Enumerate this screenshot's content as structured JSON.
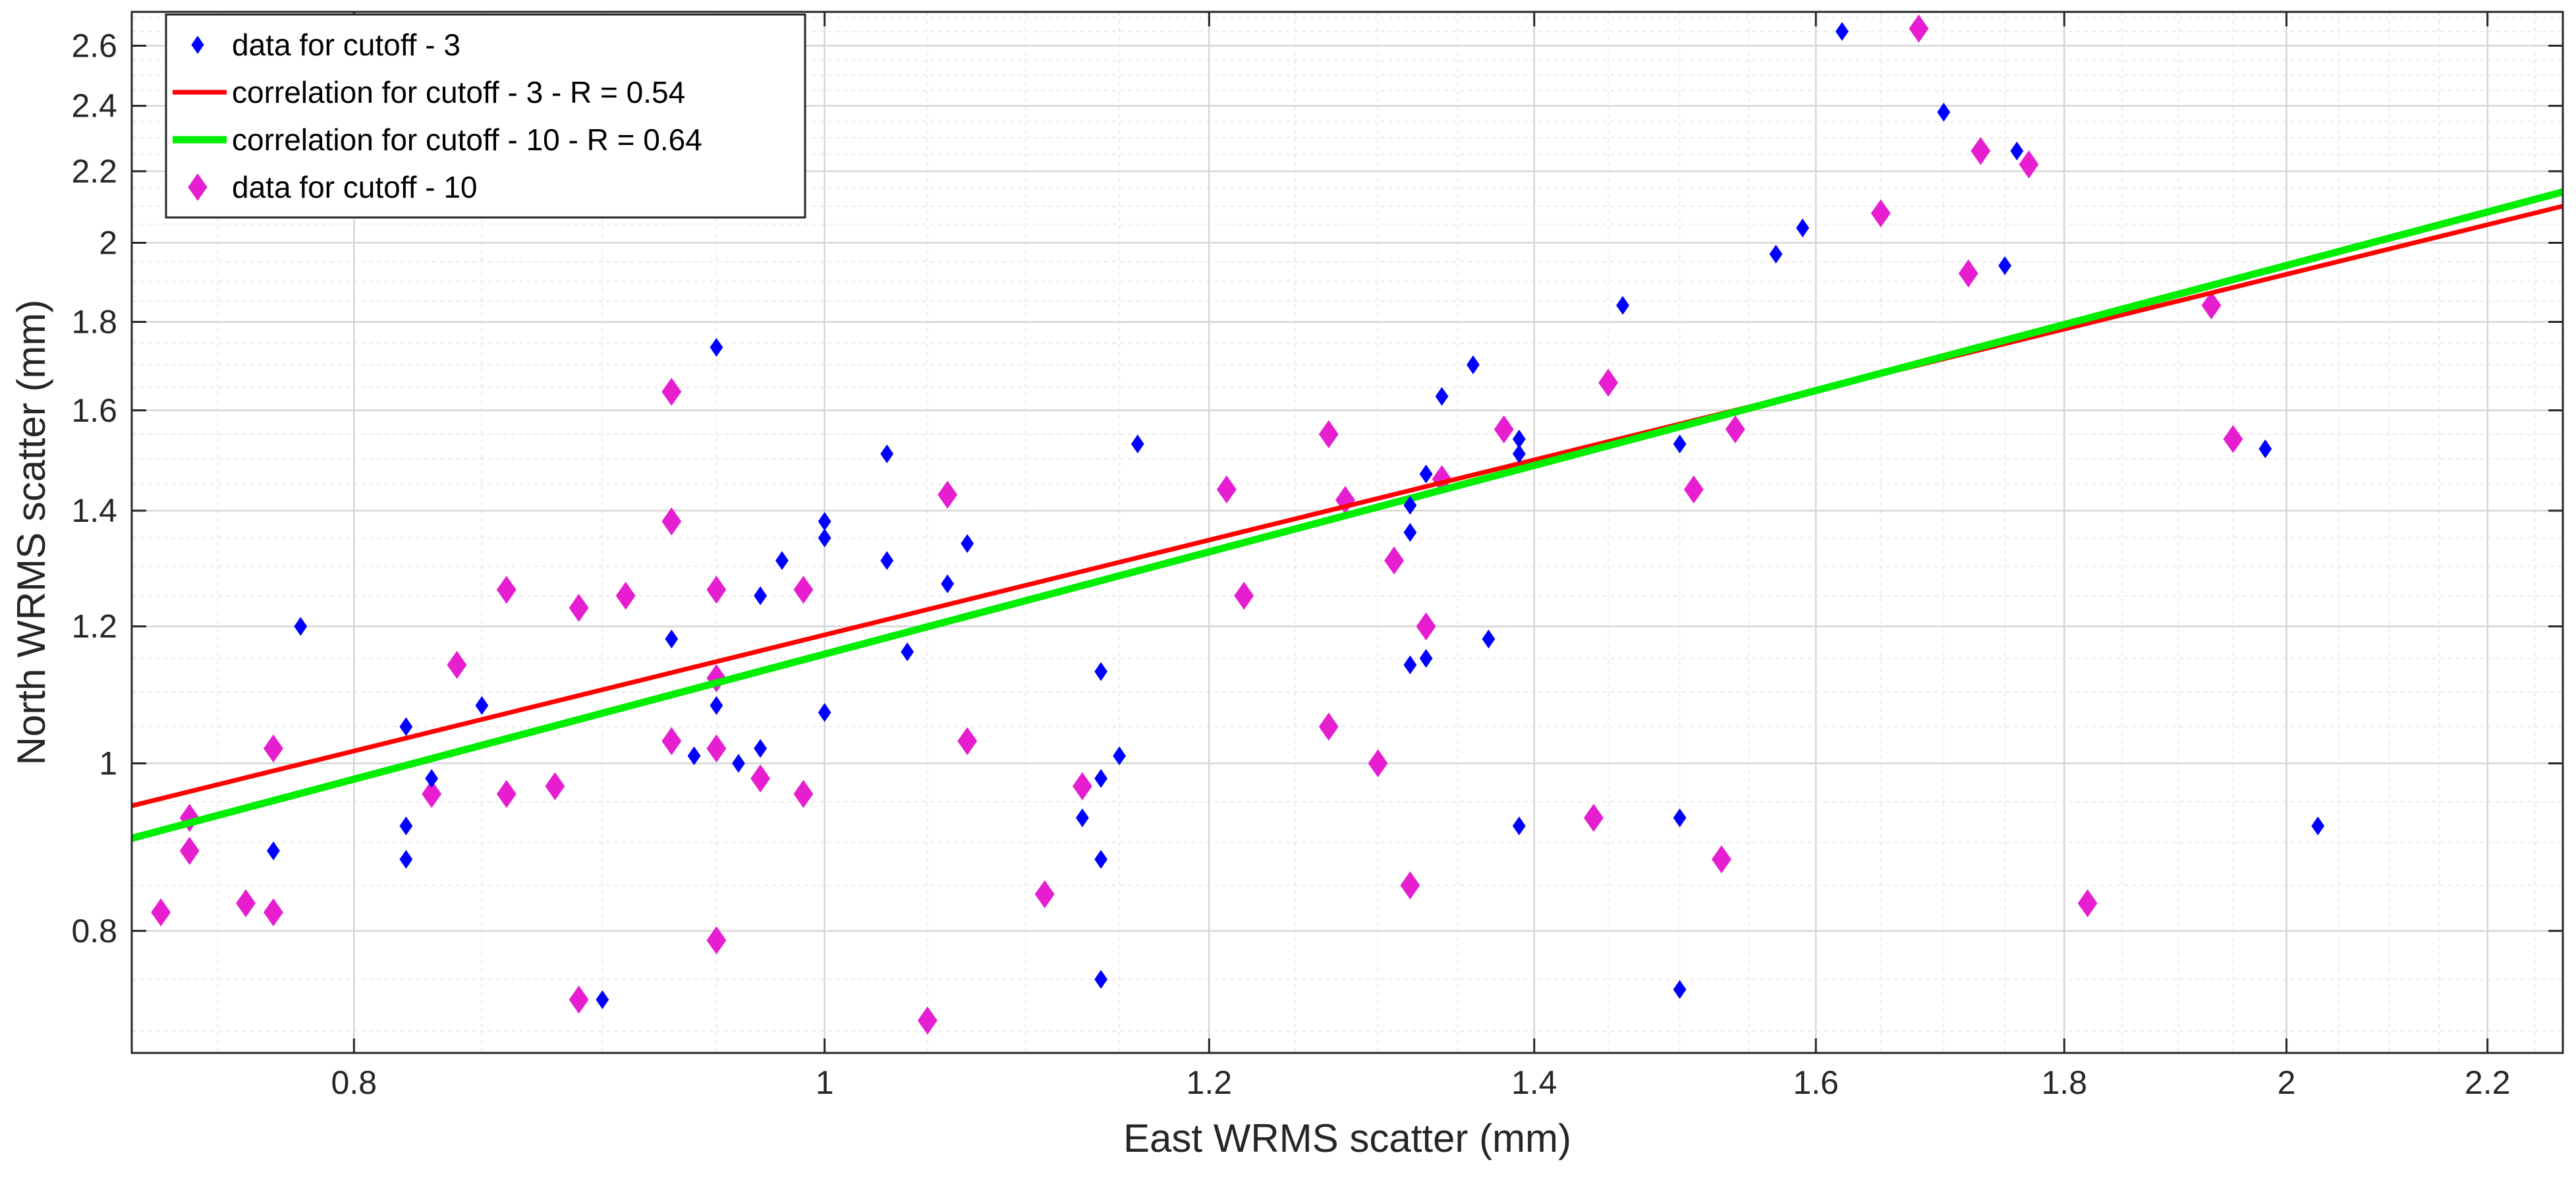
{
  "chart_data": {
    "type": "scatter",
    "xscale": "log",
    "yscale": "log",
    "xlabel": "East WRMS scatter (mm)",
    "ylabel": "North WRMS scatter (mm)",
    "xlim": [
      0.72,
      2.28
    ],
    "ylim": [
      0.68,
      2.72
    ],
    "xticks": [
      0.8,
      1,
      1.2,
      1.4,
      1.6,
      1.8,
      2,
      2.2
    ],
    "xtick_labels": [
      "0.8",
      "1",
      "1.2",
      "1.4",
      "1.6",
      "1.8",
      "2",
      "2.2"
    ],
    "yticks": [
      0.8,
      1,
      1.2,
      1.4,
      1.6,
      1.8,
      2,
      2.2,
      2.4,
      2.6
    ],
    "ytick_labels": [
      "0.8",
      "1",
      "1.2",
      "1.4",
      "1.6",
      "1.8",
      "2",
      "2.2",
      "2.4",
      "2.6"
    ],
    "grid": true,
    "legend_position": "top-left",
    "colors": {
      "cutoff3": "#0000ff",
      "cutoff10": "#e61ecf",
      "fit3": "#ff0000",
      "fit10": "#00ee00"
    },
    "series": [
      {
        "name": "data for cutoff - 3",
        "kind": "points",
        "marker": "small-diamond",
        "color": "#0000ff",
        "points": [
          [
            0.78,
            1.2
          ],
          [
            0.77,
            0.89
          ],
          [
            0.82,
            1.05
          ],
          [
            0.82,
            0.92
          ],
          [
            0.82,
            0.88
          ],
          [
            0.83,
            0.98
          ],
          [
            0.85,
            1.08
          ],
          [
            0.9,
            0.73
          ],
          [
            0.93,
            1.18
          ],
          [
            0.94,
            1.01
          ],
          [
            0.95,
            1.74
          ],
          [
            0.95,
            1.08
          ],
          [
            0.96,
            1.0
          ],
          [
            0.97,
            1.25
          ],
          [
            0.97,
            1.02
          ],
          [
            0.98,
            1.31
          ],
          [
            1.0,
            1.38
          ],
          [
            1.0,
            1.35
          ],
          [
            1.0,
            1.07
          ],
          [
            1.03,
            1.51
          ],
          [
            1.03,
            1.31
          ],
          [
            1.04,
            1.16
          ],
          [
            1.06,
            1.27
          ],
          [
            1.07,
            1.34
          ],
          [
            1.13,
            0.93
          ],
          [
            1.14,
            1.13
          ],
          [
            1.14,
            0.98
          ],
          [
            1.14,
            0.88
          ],
          [
            1.14,
            0.75
          ],
          [
            1.15,
            1.01
          ],
          [
            1.16,
            1.53
          ],
          [
            1.32,
            1.41
          ],
          [
            1.32,
            1.36
          ],
          [
            1.32,
            1.14
          ],
          [
            1.33,
            1.47
          ],
          [
            1.33,
            1.15
          ],
          [
            1.34,
            1.63
          ],
          [
            1.36,
            1.7
          ],
          [
            1.37,
            1.18
          ],
          [
            1.39,
            1.54
          ],
          [
            1.39,
            1.51
          ],
          [
            1.39,
            0.92
          ],
          [
            1.46,
            1.84
          ],
          [
            1.5,
            1.53
          ],
          [
            1.5,
            0.93
          ],
          [
            1.5,
            0.74
          ],
          [
            1.57,
            1.97
          ],
          [
            1.59,
            2.04
          ],
          [
            1.62,
            2.65
          ],
          [
            1.7,
            2.38
          ],
          [
            1.75,
            1.94
          ],
          [
            1.76,
            2.26
          ],
          [
            1.98,
            1.52
          ],
          [
            2.03,
            0.92
          ]
        ]
      },
      {
        "name": "correlation for cutoff - 3 - R = 0.54",
        "kind": "line",
        "color": "#ff0000",
        "line": [
          [
            0.72,
            0.945
          ],
          [
            2.28,
            2.1
          ]
        ]
      },
      {
        "name": "correlation for cutoff - 10 - R = 0.64",
        "kind": "line",
        "color": "#00ee00",
        "line": [
          [
            0.72,
            0.905
          ],
          [
            2.28,
            2.14
          ]
        ]
      },
      {
        "name": "data for cutoff - 10",
        "kind": "points",
        "marker": "diamond",
        "color": "#e61ecf",
        "points": [
          [
            0.73,
            0.82
          ],
          [
            0.74,
            0.93
          ],
          [
            0.74,
            0.89
          ],
          [
            0.76,
            0.83
          ],
          [
            0.77,
            1.02
          ],
          [
            0.77,
            0.82
          ],
          [
            0.83,
            0.96
          ],
          [
            0.84,
            1.14
          ],
          [
            0.86,
            1.26
          ],
          [
            0.86,
            0.96
          ],
          [
            0.88,
            0.97
          ],
          [
            0.89,
            1.23
          ],
          [
            0.89,
            0.73
          ],
          [
            0.91,
            1.25
          ],
          [
            0.93,
            1.64
          ],
          [
            0.93,
            1.38
          ],
          [
            0.93,
            1.03
          ],
          [
            0.95,
            1.26
          ],
          [
            0.95,
            1.12
          ],
          [
            0.95,
            1.02
          ],
          [
            0.95,
            0.79
          ],
          [
            0.97,
            0.98
          ],
          [
            0.99,
            1.26
          ],
          [
            0.99,
            0.96
          ],
          [
            1.05,
            0.71
          ],
          [
            1.06,
            1.43
          ],
          [
            1.07,
            1.03
          ],
          [
            1.11,
            0.84
          ],
          [
            1.13,
            0.97
          ],
          [
            1.21,
            1.44
          ],
          [
            1.22,
            1.25
          ],
          [
            1.27,
            1.55
          ],
          [
            1.27,
            1.05
          ],
          [
            1.28,
            1.42
          ],
          [
            1.3,
            1.0
          ],
          [
            1.31,
            1.31
          ],
          [
            1.32,
            0.85
          ],
          [
            1.33,
            1.2
          ],
          [
            1.34,
            1.46
          ],
          [
            1.38,
            1.56
          ],
          [
            1.44,
            0.93
          ],
          [
            1.45,
            1.66
          ],
          [
            1.51,
            1.44
          ],
          [
            1.53,
            0.88
          ],
          [
            1.54,
            1.56
          ],
          [
            1.65,
            2.08
          ],
          [
            1.68,
            2.66
          ],
          [
            1.72,
            1.92
          ],
          [
            1.73,
            2.26
          ],
          [
            1.77,
            2.22
          ],
          [
            1.82,
            0.83
          ],
          [
            1.93,
            1.84
          ],
          [
            1.95,
            1.54
          ]
        ]
      }
    ]
  }
}
